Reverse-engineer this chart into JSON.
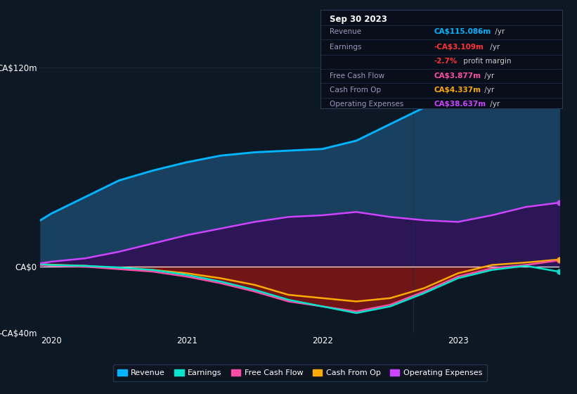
{
  "bg_color": "#0d1825",
  "plot_bg_color": "#0d1825",
  "x_years": [
    2019.92,
    2020.0,
    2020.25,
    2020.5,
    2020.75,
    2021.0,
    2021.25,
    2021.5,
    2021.75,
    2022.0,
    2022.25,
    2022.5,
    2022.75,
    2023.0,
    2023.25,
    2023.5,
    2023.75
  ],
  "revenue": [
    28,
    32,
    42,
    52,
    58,
    63,
    67,
    69,
    70,
    71,
    76,
    86,
    96,
    101,
    108,
    112,
    115
  ],
  "earnings": [
    1.5,
    1,
    0.5,
    -0.5,
    -2,
    -5,
    -9,
    -14,
    -20,
    -24,
    -28,
    -24,
    -16,
    -7,
    -2,
    0.5,
    -3.1
  ],
  "free_cash_flow": [
    1,
    0.5,
    0,
    -1.5,
    -3,
    -6,
    -10,
    -15,
    -21,
    -24,
    -27,
    -23,
    -15,
    -6,
    -1,
    1,
    3.877
  ],
  "cash_from_op": [
    1.5,
    1.2,
    0.5,
    -1,
    -2,
    -4,
    -7,
    -11,
    -17,
    -19,
    -21,
    -19,
    -13,
    -4,
    1,
    2.5,
    4.337
  ],
  "operating_expenses": [
    2,
    3,
    5,
    9,
    14,
    19,
    23,
    27,
    30,
    31,
    33,
    30,
    28,
    27,
    31,
    36,
    38.637
  ],
  "ylim": [
    -40,
    130
  ],
  "yticks": [
    -40,
    0,
    120
  ],
  "ytick_labels": [
    "-CA$40m",
    "CA$0",
    "CA$120m"
  ],
  "xticks": [
    2020,
    2021,
    2022,
    2023
  ],
  "xtick_labels": [
    "2020",
    "2021",
    "2022",
    "2023"
  ],
  "color_revenue": "#00b4ff",
  "color_earnings": "#00e5cc",
  "color_free_cash_flow": "#ff4da6",
  "color_cash_from_op": "#ffaa00",
  "color_op_expenses": "#cc44ff",
  "color_revenue_fill": "#1a4060",
  "color_op_expenses_fill": "#2d1655",
  "color_earnings_fill_neg": "#7a1515",
  "grid_color": "#1a2a3a",
  "legend_items": [
    "Revenue",
    "Earnings",
    "Free Cash Flow",
    "Cash From Op",
    "Operating Expenses"
  ],
  "legend_colors": [
    "#00b4ff",
    "#00e5cc",
    "#ff4da6",
    "#ffaa00",
    "#cc44ff"
  ],
  "info_title": "Sep 30 2023",
  "info_rows": [
    {
      "label": "Revenue",
      "val1": "CA$115.086m",
      "val1_color": "#00b4ff",
      "val2": " /yr",
      "val2_color": "#cccccc",
      "extra": null
    },
    {
      "label": "Earnings",
      "val1": "-CA$3.109m",
      "val1_color": "#ff3333",
      "val2": " /yr",
      "val2_color": "#cccccc",
      "extra": null
    },
    {
      "label": "",
      "val1": "-2.7%",
      "val1_color": "#ff3333",
      "val2": " profit margin",
      "val2_color": "#cccccc",
      "extra": null
    },
    {
      "label": "Free Cash Flow",
      "val1": "CA$3.877m",
      "val1_color": "#ff4da6",
      "val2": " /yr",
      "val2_color": "#cccccc",
      "extra": null
    },
    {
      "label": "Cash From Op",
      "val1": "CA$4.337m",
      "val1_color": "#ffaa00",
      "val2": " /yr",
      "val2_color": "#cccccc",
      "extra": null
    },
    {
      "label": "Operating Expenses",
      "val1": "CA$38.637m",
      "val1_color": "#cc44ff",
      "val2": " /yr",
      "val2_color": "#cccccc",
      "extra": null
    }
  ]
}
